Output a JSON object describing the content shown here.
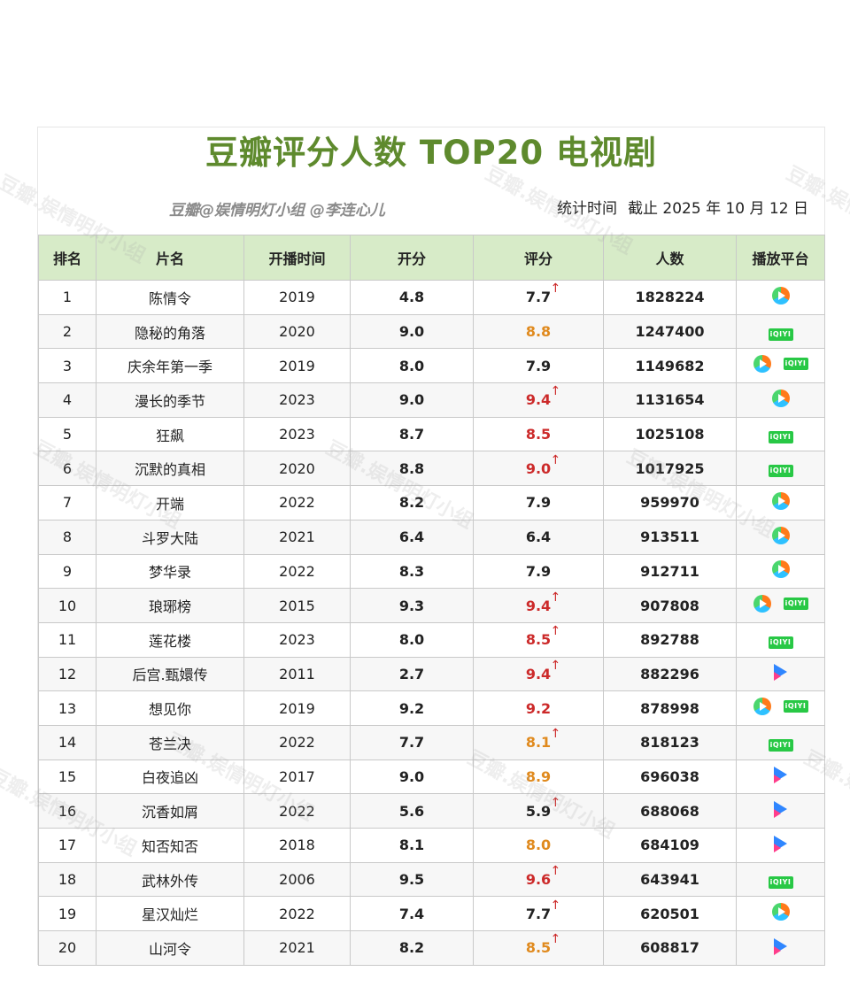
{
  "title": "豆瓣评分人数 TOP20 电视剧",
  "credit": "豆瓣@娱情明灯小组 @李连心儿",
  "stats_label": "统计时间",
  "stats_value": "截止 2025 年 10 月 12 日",
  "watermark": "豆瓣.娱情明灯小组",
  "headers": [
    "排名",
    "片名",
    "开播时间",
    "开分",
    "评分",
    "人数",
    "播放平台"
  ],
  "rows": [
    {
      "rank": "1",
      "name": "陈情令",
      "year": "2019",
      "open": "4.8",
      "score": "7.7",
      "color": "black",
      "up": true,
      "count": "1828224",
      "platforms": [
        "tencent"
      ]
    },
    {
      "rank": "2",
      "name": "隐秘的角落",
      "year": "2020",
      "open": "9.0",
      "score": "8.8",
      "color": "orange",
      "up": false,
      "count": "1247400",
      "platforms": [
        "iqiyi"
      ]
    },
    {
      "rank": "3",
      "name": "庆余年第一季",
      "year": "2019",
      "open": "8.0",
      "score": "7.9",
      "color": "black",
      "up": false,
      "count": "1149682",
      "platforms": [
        "tencent",
        "iqiyi"
      ]
    },
    {
      "rank": "4",
      "name": "漫长的季节",
      "year": "2023",
      "open": "9.0",
      "score": "9.4",
      "color": "red",
      "up": true,
      "count": "1131654",
      "platforms": [
        "tencent"
      ]
    },
    {
      "rank": "5",
      "name": "狂飙",
      "year": "2023",
      "open": "8.7",
      "score": "8.5",
      "color": "red",
      "up": false,
      "count": "1025108",
      "platforms": [
        "iqiyi"
      ]
    },
    {
      "rank": "6",
      "name": "沉默的真相",
      "year": "2020",
      "open": "8.8",
      "score": "9.0",
      "color": "red",
      "up": true,
      "count": "1017925",
      "platforms": [
        "iqiyi"
      ]
    },
    {
      "rank": "7",
      "name": "开端",
      "year": "2022",
      "open": "8.2",
      "score": "7.9",
      "color": "black",
      "up": false,
      "count": "959970",
      "platforms": [
        "tencent"
      ]
    },
    {
      "rank": "8",
      "name": "斗罗大陆",
      "year": "2021",
      "open": "6.4",
      "score": "6.4",
      "color": "black",
      "up": false,
      "count": "913511",
      "platforms": [
        "tencent"
      ]
    },
    {
      "rank": "9",
      "name": "梦华录",
      "year": "2022",
      "open": "8.3",
      "score": "7.9",
      "color": "black",
      "up": false,
      "count": "912711",
      "platforms": [
        "tencent"
      ]
    },
    {
      "rank": "10",
      "name": "琅琊榜",
      "year": "2015",
      "open": "9.3",
      "score": "9.4",
      "color": "red",
      "up": true,
      "count": "907808",
      "platforms": [
        "tencent",
        "iqiyi"
      ]
    },
    {
      "rank": "11",
      "name": "莲花楼",
      "year": "2023",
      "open": "8.0",
      "score": "8.5",
      "color": "red",
      "up": true,
      "count": "892788",
      "platforms": [
        "iqiyi"
      ]
    },
    {
      "rank": "12",
      "name": "后宫.甄嬛传",
      "year": "2011",
      "open": "2.7",
      "score": "9.4",
      "color": "red",
      "up": true,
      "count": "882296",
      "platforms": [
        "youku"
      ]
    },
    {
      "rank": "13",
      "name": "想见你",
      "year": "2019",
      "open": "9.2",
      "score": "9.2",
      "color": "red",
      "up": false,
      "count": "878998",
      "platforms": [
        "tencent",
        "iqiyi"
      ]
    },
    {
      "rank": "14",
      "name": "苍兰决",
      "year": "2022",
      "open": "7.7",
      "score": "8.1",
      "color": "orange",
      "up": true,
      "count": "818123",
      "platforms": [
        "iqiyi"
      ]
    },
    {
      "rank": "15",
      "name": "白夜追凶",
      "year": "2017",
      "open": "9.0",
      "score": "8.9",
      "color": "orange",
      "up": false,
      "count": "696038",
      "platforms": [
        "youku"
      ]
    },
    {
      "rank": "16",
      "name": "沉香如屑",
      "year": "2022",
      "open": "5.6",
      "score": "5.9",
      "color": "black",
      "up": true,
      "count": "688068",
      "platforms": [
        "youku"
      ]
    },
    {
      "rank": "17",
      "name": "知否知否",
      "year": "2018",
      "open": "8.1",
      "score": "8.0",
      "color": "orange",
      "up": false,
      "count": "684109",
      "platforms": [
        "youku"
      ]
    },
    {
      "rank": "18",
      "name": "武林外传",
      "year": "2006",
      "open": "9.5",
      "score": "9.6",
      "color": "red",
      "up": true,
      "count": "643941",
      "platforms": [
        "iqiyi"
      ]
    },
    {
      "rank": "19",
      "name": "星汉灿烂",
      "year": "2022",
      "open": "7.4",
      "score": "7.7",
      "color": "black",
      "up": true,
      "count": "620501",
      "platforms": [
        "tencent"
      ]
    },
    {
      "rank": "20",
      "name": "山河令",
      "year": "2021",
      "open": "8.2",
      "score": "8.5",
      "color": "orange",
      "up": true,
      "count": "608817",
      "platforms": [
        "youku"
      ]
    }
  ],
  "arrow_glyph": "↑",
  "iqiyi_label": "iQIYI"
}
